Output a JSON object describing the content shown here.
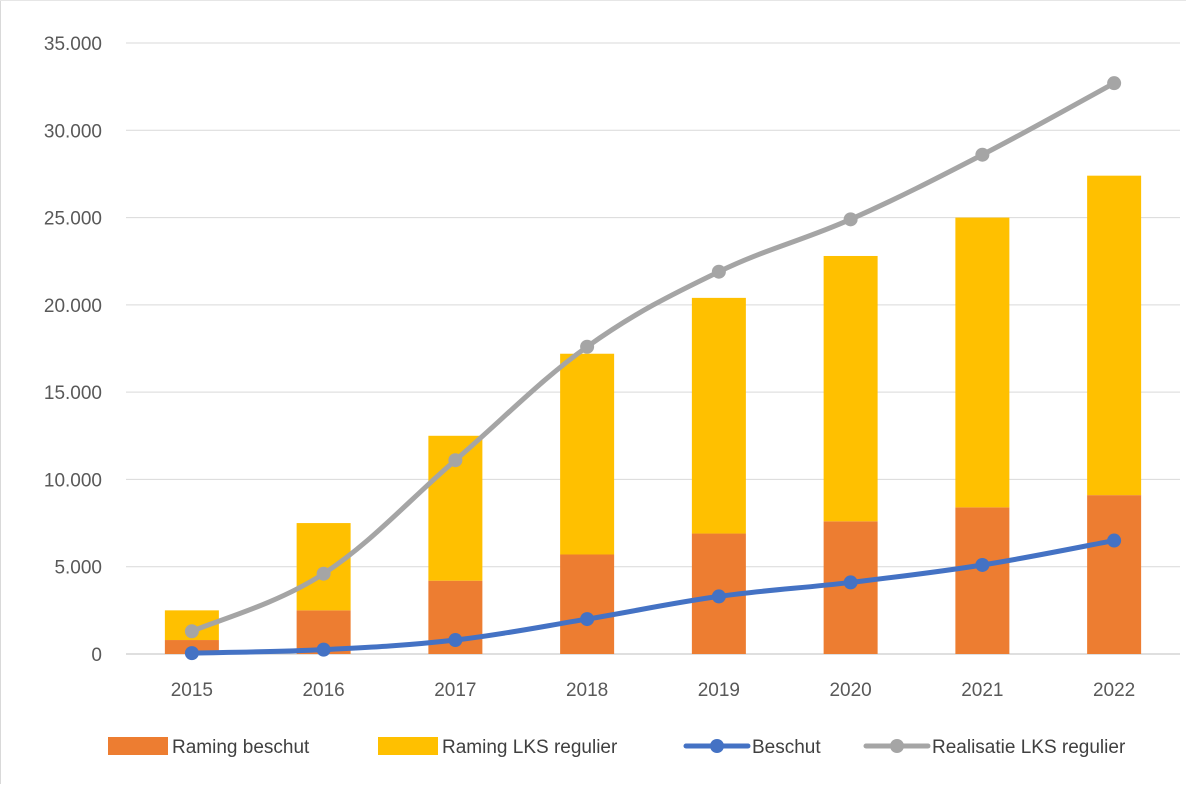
{
  "chart_data": {
    "type": "bar",
    "title": "",
    "xlabel": "",
    "ylabel": "",
    "categories": [
      "2015",
      "2016",
      "2017",
      "2018",
      "2019",
      "2020",
      "2021",
      "2022"
    ],
    "ylim": [
      0,
      35000
    ],
    "yticks": [
      0,
      5000,
      10000,
      15000,
      20000,
      25000,
      30000,
      35000
    ],
    "ytick_labels": [
      "0",
      "5.000",
      "10.000",
      "15.000",
      "20.000",
      "25.000",
      "30.000",
      "35.000"
    ],
    "grid": true,
    "legend_position": "bottom",
    "stacked": true,
    "series": [
      {
        "name": "Raming beschut",
        "kind": "bar",
        "color": "#ED7D31",
        "values": [
          800,
          2500,
          4200,
          5700,
          6900,
          7600,
          8400,
          9100
        ]
      },
      {
        "name": "Raming LKS regulier",
        "kind": "bar",
        "color": "#FFC000",
        "values": [
          1700,
          5000,
          8300,
          11500,
          13500,
          15200,
          16600,
          18300
        ]
      },
      {
        "name": "Beschut",
        "kind": "line",
        "color": "#4472C4",
        "values": [
          50,
          250,
          800,
          2000,
          3300,
          4100,
          5100,
          6500
        ]
      },
      {
        "name": "Realisatie LKS regulier",
        "kind": "line",
        "color": "#A5A5A5",
        "values": [
          1300,
          4600,
          11100,
          17600,
          21900,
          24900,
          28600,
          32700
        ]
      }
    ]
  }
}
